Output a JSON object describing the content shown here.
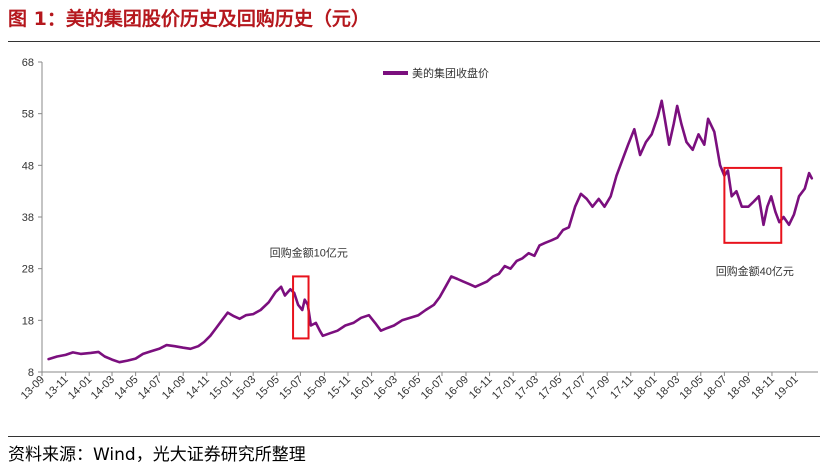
{
  "figure": {
    "title": "图 1：美的集团股价历史及回购历史（元）",
    "source": "资料来源：Wind，光大证券研究所整理"
  },
  "colors": {
    "title": "#b5171d",
    "series": "#7b0f7e",
    "annotation_box": "#e8121c",
    "axis": "#888888",
    "text": "#333333"
  },
  "chart_data": {
    "type": "line",
    "title": "",
    "xlabel": "",
    "ylabel": "",
    "ylim": [
      8,
      68
    ],
    "yticks": [
      8,
      18,
      28,
      38,
      48,
      58,
      68
    ],
    "x_tick_labels": [
      "13-09",
      "13-11",
      "14-01",
      "14-03",
      "14-05",
      "14-07",
      "14-09",
      "14-11",
      "15-01",
      "15-03",
      "15-05",
      "15-07",
      "15-09",
      "15-11",
      "16-01",
      "16-03",
      "16-05",
      "16-07",
      "16-09",
      "16-11",
      "17-01",
      "17-03",
      "17-05",
      "17-07",
      "17-09",
      "17-11",
      "18-01",
      "18-03",
      "18-05",
      "18-07",
      "18-09",
      "18-11",
      "19-01"
    ],
    "x_start": "2013-09",
    "x_end": "2019-02",
    "legend": {
      "position": "top-center"
    },
    "series": [
      {
        "name": "美的集团收盘价",
        "points": [
          [
            "2013-09-18",
            10.5
          ],
          [
            "2013-10-10",
            11.0
          ],
          [
            "2013-11-01",
            11.3
          ],
          [
            "2013-11-20",
            11.8
          ],
          [
            "2013-12-10",
            11.5
          ],
          [
            "2014-01-05",
            11.7
          ],
          [
            "2014-01-25",
            11.9
          ],
          [
            "2014-02-10",
            11.0
          ],
          [
            "2014-03-01",
            10.4
          ],
          [
            "2014-03-20",
            9.9
          ],
          [
            "2014-04-10",
            10.2
          ],
          [
            "2014-05-01",
            10.6
          ],
          [
            "2014-05-20",
            11.5
          ],
          [
            "2014-06-10",
            12.0
          ],
          [
            "2014-07-01",
            12.5
          ],
          [
            "2014-07-20",
            13.2
          ],
          [
            "2014-08-10",
            13.0
          ],
          [
            "2014-09-01",
            12.7
          ],
          [
            "2014-09-20",
            12.5
          ],
          [
            "2014-10-10",
            13.0
          ],
          [
            "2014-10-25",
            13.8
          ],
          [
            "2014-11-10",
            15.0
          ],
          [
            "2014-11-25",
            16.5
          ],
          [
            "2014-12-10",
            18.0
          ],
          [
            "2014-12-25",
            19.5
          ],
          [
            "2015-01-10",
            18.8
          ],
          [
            "2015-01-25",
            18.3
          ],
          [
            "2015-02-10",
            19.0
          ],
          [
            "2015-03-01",
            19.2
          ],
          [
            "2015-03-20",
            20.0
          ],
          [
            "2015-04-10",
            21.5
          ],
          [
            "2015-04-28",
            23.5
          ],
          [
            "2015-05-12",
            24.5
          ],
          [
            "2015-05-22",
            22.8
          ],
          [
            "2015-06-05",
            24.0
          ],
          [
            "2015-06-15",
            23.3
          ],
          [
            "2015-06-25",
            21.0
          ],
          [
            "2015-07-06",
            20.0
          ],
          [
            "2015-07-12",
            22.0
          ],
          [
            "2015-07-20",
            21.0
          ],
          [
            "2015-07-28",
            17.0
          ],
          [
            "2015-08-10",
            17.5
          ],
          [
            "2015-08-20",
            16.0
          ],
          [
            "2015-08-28",
            15.0
          ],
          [
            "2015-09-15",
            15.5
          ],
          [
            "2015-10-05",
            16.0
          ],
          [
            "2015-10-25",
            17.0
          ],
          [
            "2015-11-15",
            17.5
          ],
          [
            "2015-12-05",
            18.5
          ],
          [
            "2015-12-25",
            19.0
          ],
          [
            "2016-01-10",
            17.5
          ],
          [
            "2016-01-25",
            16.0
          ],
          [
            "2016-02-10",
            16.5
          ],
          [
            "2016-02-28",
            17.0
          ],
          [
            "2016-03-20",
            18.0
          ],
          [
            "2016-04-10",
            18.5
          ],
          [
            "2016-05-01",
            19.0
          ],
          [
            "2016-05-20",
            20.0
          ],
          [
            "2016-06-10",
            21.0
          ],
          [
            "2016-06-25",
            22.5
          ],
          [
            "2016-07-10",
            24.5
          ],
          [
            "2016-07-25",
            26.5
          ],
          [
            "2016-08-10",
            26.0
          ],
          [
            "2016-08-25",
            25.5
          ],
          [
            "2016-09-10",
            25.0
          ],
          [
            "2016-09-25",
            24.5
          ],
          [
            "2016-10-10",
            25.0
          ],
          [
            "2016-10-25",
            25.5
          ],
          [
            "2016-11-10",
            26.5
          ],
          [
            "2016-11-25",
            27.0
          ],
          [
            "2016-12-10",
            28.5
          ],
          [
            "2016-12-25",
            28.0
          ],
          [
            "2017-01-10",
            29.5
          ],
          [
            "2017-01-25",
            30.0
          ],
          [
            "2017-02-10",
            31.0
          ],
          [
            "2017-02-25",
            30.5
          ],
          [
            "2017-03-10",
            32.5
          ],
          [
            "2017-03-25",
            33.0
          ],
          [
            "2017-04-10",
            33.5
          ],
          [
            "2017-04-25",
            34.0
          ],
          [
            "2017-05-10",
            35.5
          ],
          [
            "2017-05-25",
            36.0
          ],
          [
            "2017-06-10",
            40.0
          ],
          [
            "2017-06-25",
            42.5
          ],
          [
            "2017-07-10",
            41.5
          ],
          [
            "2017-07-25",
            40.0
          ],
          [
            "2017-08-10",
            41.5
          ],
          [
            "2017-08-25",
            40.0
          ],
          [
            "2017-09-10",
            42.0
          ],
          [
            "2017-09-25",
            46.0
          ],
          [
            "2017-10-10",
            49.0
          ],
          [
            "2017-10-25",
            52.0
          ],
          [
            "2017-11-10",
            55.0
          ],
          [
            "2017-11-25",
            50.0
          ],
          [
            "2017-12-10",
            52.5
          ],
          [
            "2017-12-25",
            54.0
          ],
          [
            "2018-01-10",
            57.5
          ],
          [
            "2018-01-20",
            60.5
          ],
          [
            "2018-01-28",
            57.0
          ],
          [
            "2018-02-08",
            52.0
          ],
          [
            "2018-02-20",
            56.0
          ],
          [
            "2018-03-01",
            59.5
          ],
          [
            "2018-03-12",
            56.0
          ],
          [
            "2018-03-25",
            52.5
          ],
          [
            "2018-04-10",
            51.0
          ],
          [
            "2018-04-25",
            54.0
          ],
          [
            "2018-05-10",
            52.0
          ],
          [
            "2018-05-20",
            57.0
          ],
          [
            "2018-06-05",
            54.5
          ],
          [
            "2018-06-20",
            48.0
          ],
          [
            "2018-07-01",
            46.0
          ],
          [
            "2018-07-10",
            47.0
          ],
          [
            "2018-07-20",
            42.0
          ],
          [
            "2018-08-01",
            43.0
          ],
          [
            "2018-08-15",
            40.0
          ],
          [
            "2018-09-01",
            40.0
          ],
          [
            "2018-09-15",
            41.0
          ],
          [
            "2018-09-28",
            42.0
          ],
          [
            "2018-10-10",
            36.5
          ],
          [
            "2018-10-20",
            40.0
          ],
          [
            "2018-10-30",
            42.0
          ],
          [
            "2018-11-10",
            39.0
          ],
          [
            "2018-11-20",
            37.0
          ],
          [
            "2018-12-01",
            38.0
          ],
          [
            "2018-12-15",
            36.5
          ],
          [
            "2018-12-28",
            38.5
          ],
          [
            "2019-01-10",
            42.0
          ],
          [
            "2019-01-25",
            43.5
          ],
          [
            "2019-02-05",
            46.5
          ],
          [
            "2019-02-12",
            45.5
          ]
        ]
      }
    ],
    "annotations": [
      {
        "label": "回购金额10亿元",
        "x_range": [
          "2015-06-12",
          "2015-07-22"
        ],
        "y_range": [
          14.5,
          26.5
        ]
      },
      {
        "label": "回购金额40亿元",
        "x_range": [
          "2018-07-01",
          "2018-11-25"
        ],
        "y_range": [
          33,
          47.5
        ]
      }
    ]
  }
}
